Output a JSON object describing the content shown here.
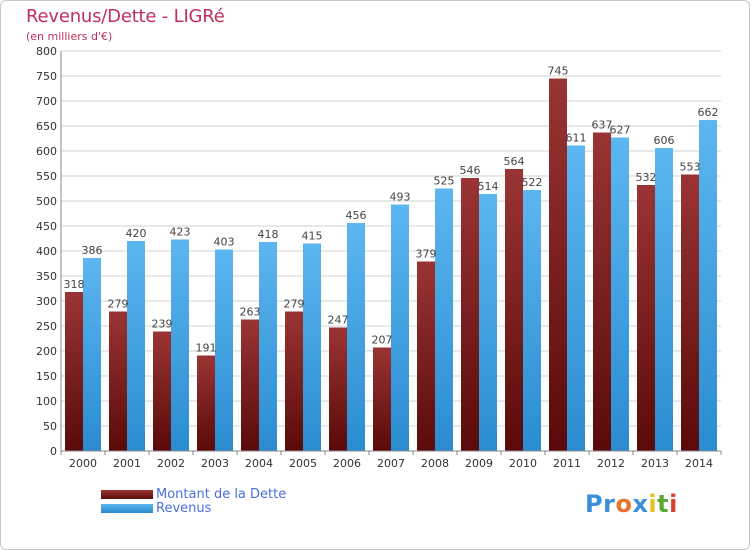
{
  "header": {
    "title": "Revenus/Dette - LIGRé",
    "subtitle": "(en milliers d'€)"
  },
  "legend": [
    {
      "label": "Montant de la Dette",
      "color": "#7a1c1c"
    },
    {
      "label": "Revenus",
      "color": "#4aa8e8"
    }
  ],
  "logo": {
    "text": "Proxiti",
    "letters": [
      {
        "char": "P",
        "color": "#3a8fd8"
      },
      {
        "char": "r",
        "color": "#3a8fd8"
      },
      {
        "char": "o",
        "color": "#e8732a"
      },
      {
        "char": "x",
        "color": "#3a8fd8"
      },
      {
        "char": "i",
        "color": "#e8c020"
      },
      {
        "char": "t",
        "color": "#5aa832"
      },
      {
        "char": "i",
        "color": "#d84030"
      }
    ]
  },
  "chart_data": {
    "type": "bar",
    "categories": [
      "2000",
      "2001",
      "2002",
      "2003",
      "2004",
      "2005",
      "2006",
      "2007",
      "2008",
      "2009",
      "2010",
      "2011",
      "2012",
      "2013",
      "2014"
    ],
    "series": [
      {
        "name": "Montant de la Dette",
        "color": "#7a1c1c",
        "values": [
          318,
          279,
          239,
          191,
          263,
          279,
          247,
          207,
          379,
          546,
          564,
          745,
          637,
          532,
          553
        ]
      },
      {
        "name": "Revenus",
        "color": "#4aa8e8",
        "values": [
          386,
          420,
          423,
          403,
          418,
          415,
          456,
          493,
          525,
          514,
          522,
          611,
          627,
          606,
          662
        ]
      }
    ],
    "ylim": [
      0,
      800
    ],
    "yticks": [
      0,
      50,
      100,
      150,
      200,
      250,
      300,
      350,
      400,
      450,
      500,
      550,
      600,
      650,
      700,
      750,
      800
    ],
    "grid": true,
    "legend_position": "bottom-left"
  }
}
